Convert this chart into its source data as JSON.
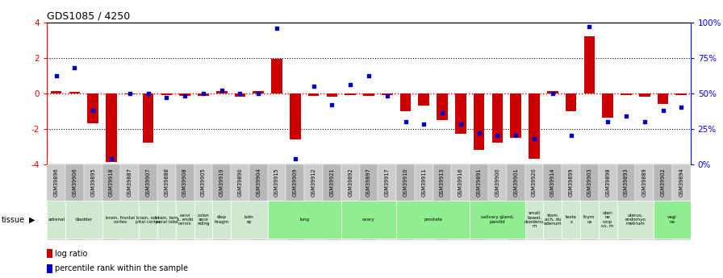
{
  "title": "GDS1085 / 4250",
  "samples": [
    "GSM39896",
    "GSM39906",
    "GSM39895",
    "GSM39918",
    "GSM39887",
    "GSM39907",
    "GSM39888",
    "GSM39908",
    "GSM39905",
    "GSM39919",
    "GSM39890",
    "GSM39904",
    "GSM39915",
    "GSM39909",
    "GSM39912",
    "GSM39921",
    "GSM39892",
    "GSM39897",
    "GSM39917",
    "GSM39910",
    "GSM39911",
    "GSM39913",
    "GSM39916",
    "GSM39891",
    "GSM39900",
    "GSM39901",
    "GSM39920",
    "GSM39914",
    "GSM39899",
    "GSM39903",
    "GSM39898",
    "GSM39893",
    "GSM39889",
    "GSM39902",
    "GSM39894"
  ],
  "log_ratio": [
    0.1,
    0.05,
    -1.7,
    -3.9,
    -0.05,
    -2.8,
    -0.1,
    -0.15,
    -0.15,
    0.1,
    -0.2,
    0.1,
    1.95,
    -2.6,
    -0.15,
    -0.2,
    -0.1,
    -0.15,
    -0.1,
    -1.0,
    -0.7,
    -1.5,
    -2.3,
    -3.2,
    -2.8,
    -2.5,
    -3.7,
    0.1,
    -1.0,
    3.2,
    -1.4,
    -0.1,
    -0.2,
    -0.6,
    -0.1
  ],
  "percentile": [
    62,
    68,
    38,
    4,
    50,
    50,
    47,
    48,
    50,
    52,
    50,
    50,
    96,
    4,
    55,
    42,
    56,
    62,
    48,
    30,
    28,
    36,
    28,
    22,
    20,
    20,
    18,
    50,
    20,
    97,
    30,
    34,
    30,
    38,
    40
  ],
  "tissues": [
    {
      "label": "adrenal",
      "start": 0,
      "end": 0,
      "color": "#d0e8d0"
    },
    {
      "label": "bladder",
      "start": 1,
      "end": 2,
      "color": "#d0e8d0"
    },
    {
      "label": "brain, frontal\ncortex",
      "start": 3,
      "end": 4,
      "color": "#d0e8d0"
    },
    {
      "label": "brain, occi\npital cortex",
      "start": 5,
      "end": 5,
      "color": "#d0e8d0"
    },
    {
      "label": "brain, tem\nporal lobe",
      "start": 6,
      "end": 6,
      "color": "#d0e8d0"
    },
    {
      "label": "cervi\nx, endo\ncervix",
      "start": 7,
      "end": 7,
      "color": "#d0e8d0"
    },
    {
      "label": "colon\nasce\nnding",
      "start": 8,
      "end": 8,
      "color": "#d0e8d0"
    },
    {
      "label": "diap\nhragm",
      "start": 9,
      "end": 9,
      "color": "#d0e8d0"
    },
    {
      "label": "kidn\ney",
      "start": 10,
      "end": 11,
      "color": "#d0e8d0"
    },
    {
      "label": "lung",
      "start": 12,
      "end": 15,
      "color": "#90ee90"
    },
    {
      "label": "ovary",
      "start": 16,
      "end": 18,
      "color": "#90ee90"
    },
    {
      "label": "prostate",
      "start": 19,
      "end": 22,
      "color": "#90ee90"
    },
    {
      "label": "salivary gland,\nparotid",
      "start": 23,
      "end": 25,
      "color": "#90ee90"
    },
    {
      "label": "small\nbowel,\nduodenu\nm",
      "start": 26,
      "end": 26,
      "color": "#d0e8d0"
    },
    {
      "label": "stom\nach, du\nodenum",
      "start": 27,
      "end": 27,
      "color": "#d0e8d0"
    },
    {
      "label": "teste\ns",
      "start": 28,
      "end": 28,
      "color": "#d0e8d0"
    },
    {
      "label": "thym\nus",
      "start": 29,
      "end": 29,
      "color": "#d0e8d0"
    },
    {
      "label": "uteri\nne\ncorp\nus, m",
      "start": 30,
      "end": 30,
      "color": "#d0e8d0"
    },
    {
      "label": "uterus,\nendomyo\nmetrium",
      "start": 31,
      "end": 32,
      "color": "#d0e8d0"
    },
    {
      "label": "vagi\nna",
      "start": 33,
      "end": 34,
      "color": "#90ee90"
    }
  ],
  "ylim": [
    -4,
    4
  ],
  "yticks_left": [
    -4,
    -2,
    0,
    2,
    4
  ],
  "bar_color": "#cc0000",
  "dot_color": "#0000cc",
  "background_color": "#ffffff",
  "tick_bg_color": "#cccccc"
}
